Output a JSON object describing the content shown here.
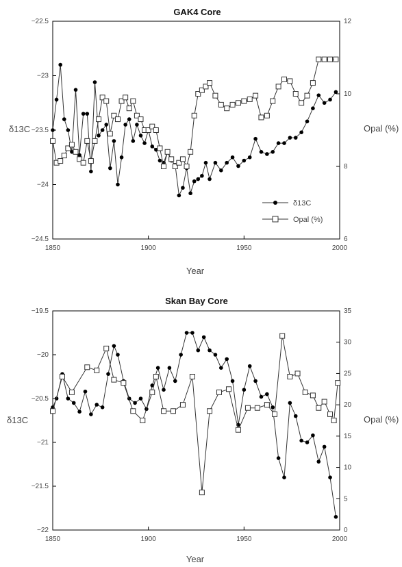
{
  "chart_data": [
    {
      "type": "line",
      "title": "GAK4 Core",
      "xlabel": "Year",
      "ylabel_left": "δ13C",
      "ylabel_right": "Opal (%)",
      "xlim": [
        1850,
        2000
      ],
      "ylim_left": [
        -24.5,
        -22.5
      ],
      "ylim_right": [
        6,
        12
      ],
      "x_ticks": [
        1850,
        1900,
        1950,
        2000
      ],
      "y_ticks_left": [
        -22.5,
        -23,
        -23.5,
        -24,
        -24.5
      ],
      "y_ticks_right": [
        12,
        10,
        8,
        6
      ],
      "grid": false,
      "legend": {
        "position": "bottom-right",
        "entries": [
          "δ13C",
          "Opal (%)"
        ]
      },
      "series": [
        {
          "name": "δ13C",
          "axis": "left",
          "marker": "filled-circle",
          "x": [
            1850,
            1852,
            1854,
            1856,
            1858,
            1860,
            1862,
            1864,
            1866,
            1868,
            1870,
            1872,
            1874,
            1876,
            1878,
            1880,
            1882,
            1884,
            1886,
            1888,
            1890,
            1892,
            1894,
            1896,
            1898,
            1900,
            1902,
            1904,
            1906,
            1908,
            1910,
            1912,
            1914,
            1916,
            1918,
            1920,
            1922,
            1924,
            1926,
            1928,
            1930,
            1932,
            1935,
            1938,
            1941,
            1944,
            1947,
            1950,
            1953,
            1956,
            1959,
            1962,
            1965,
            1968,
            1971,
            1974,
            1977,
            1980,
            1983,
            1986,
            1989,
            1992,
            1995,
            1998
          ],
          "y": [
            -23.5,
            -23.22,
            -22.9,
            -23.4,
            -23.5,
            -23.7,
            -23.13,
            -23.73,
            -23.35,
            -23.35,
            -23.88,
            -23.06,
            -23.55,
            -23.5,
            -23.45,
            -23.85,
            -23.6,
            -24.0,
            -23.75,
            -23.45,
            -23.4,
            -23.6,
            -23.45,
            -23.55,
            -23.62,
            -23.5,
            -23.65,
            -23.68,
            -23.78,
            -23.8,
            -23.7,
            -23.78,
            -23.82,
            -24.1,
            -24.03,
            -23.85,
            -24.08,
            -23.97,
            -23.95,
            -23.92,
            -23.8,
            -23.95,
            -23.8,
            -23.87,
            -23.8,
            -23.75,
            -23.83,
            -23.78,
            -23.75,
            -23.58,
            -23.7,
            -23.72,
            -23.7,
            -23.62,
            -23.62,
            -23.57,
            -23.57,
            -23.52,
            -23.42,
            -23.3,
            -23.18,
            -23.25,
            -23.22,
            -23.15
          ]
        },
        {
          "name": "Opal (%)",
          "axis": "right",
          "marker": "open-square",
          "x": [
            1850,
            1852,
            1854,
            1856,
            1858,
            1860,
            1862,
            1864,
            1866,
            1868,
            1870,
            1872,
            1874,
            1876,
            1878,
            1880,
            1882,
            1884,
            1886,
            1888,
            1890,
            1892,
            1894,
            1896,
            1898,
            1900,
            1902,
            1904,
            1906,
            1908,
            1910,
            1912,
            1914,
            1916,
            1918,
            1920,
            1922,
            1924,
            1926,
            1928,
            1930,
            1932,
            1935,
            1938,
            1941,
            1944,
            1947,
            1950,
            1953,
            1956,
            1959,
            1962,
            1965,
            1968,
            1971,
            1974,
            1977,
            1980,
            1983,
            1986,
            1989,
            1992,
            1995,
            1998
          ],
          "y": [
            8.7,
            8.1,
            8.15,
            8.3,
            8.5,
            8.6,
            8.4,
            8.2,
            8.1,
            8.7,
            8.15,
            8.7,
            9.3,
            9.9,
            9.8,
            8.9,
            9.4,
            9.3,
            9.8,
            9.9,
            9.6,
            9.8,
            9.4,
            9.3,
            9.0,
            9.0,
            9.1,
            9.0,
            8.5,
            8.0,
            8.4,
            8.2,
            8.0,
            8.1,
            8.2,
            8.0,
            8.4,
            9.4,
            10.0,
            10.1,
            10.2,
            10.3,
            9.95,
            9.7,
            9.6,
            9.7,
            9.75,
            9.8,
            9.85,
            9.95,
            9.35,
            9.4,
            9.8,
            10.2,
            10.4,
            10.35,
            10.0,
            9.75,
            9.95,
            10.3,
            10.95,
            10.95,
            10.95,
            10.95
          ]
        }
      ]
    },
    {
      "type": "line",
      "title": "Skan Bay Core",
      "xlabel": "Year",
      "ylabel_left": "δ13C",
      "ylabel_right": "Opal (%)",
      "xlim": [
        1850,
        2000
      ],
      "ylim_left": [
        -22,
        -19.5
      ],
      "ylim_right": [
        0,
        35
      ],
      "x_ticks": [
        1850,
        1900,
        1950,
        2000
      ],
      "y_ticks_left": [
        -19.5,
        -20,
        -20.5,
        -21,
        -21.5,
        -22
      ],
      "y_ticks_right": [
        35,
        30,
        25,
        20,
        15,
        10,
        5,
        0
      ],
      "grid": false,
      "series": [
        {
          "name": "δ13C",
          "axis": "left",
          "marker": "filled-circle",
          "x": [
            1850,
            1852,
            1855,
            1858,
            1861,
            1864,
            1867,
            1870,
            1873,
            1876,
            1879,
            1882,
            1884,
            1887,
            1890,
            1893,
            1896,
            1899,
            1902,
            1905,
            1908,
            1911,
            1914,
            1917,
            1920,
            1923,
            1926,
            1929,
            1932,
            1935,
            1938,
            1941,
            1944,
            1947,
            1950,
            1953,
            1956,
            1959,
            1962,
            1965,
            1968,
            1971,
            1974,
            1977,
            1980,
            1983,
            1986,
            1989,
            1992,
            1995,
            1998
          ],
          "y": [
            -20.6,
            -20.5,
            -20.22,
            -20.5,
            -20.55,
            -20.65,
            -20.42,
            -20.68,
            -20.57,
            -20.6,
            -20.22,
            -19.9,
            -20.0,
            -20.3,
            -20.5,
            -20.55,
            -20.5,
            -20.62,
            -20.35,
            -20.15,
            -20.4,
            -20.15,
            -20.3,
            -20.0,
            -19.75,
            -19.75,
            -19.95,
            -19.8,
            -19.95,
            -20.0,
            -20.15,
            -20.05,
            -20.3,
            -20.8,
            -20.4,
            -20.13,
            -20.3,
            -20.48,
            -20.45,
            -20.6,
            -21.18,
            -21.4,
            -20.55,
            -20.7,
            -20.98,
            -21.0,
            -20.92,
            -21.22,
            -21.05,
            -21.4,
            -21.85
          ]
        },
        {
          "name": "Opal (%)",
          "axis": "right",
          "marker": "open-square",
          "x": [
            1850,
            1855,
            1860,
            1868,
            1873,
            1878,
            1882,
            1887,
            1892,
            1897,
            1902,
            1904,
            1908,
            1913,
            1918,
            1923,
            1928,
            1932,
            1937,
            1942,
            1947,
            1952,
            1957,
            1962,
            1966,
            1970,
            1974,
            1978,
            1982,
            1986,
            1989,
            1992,
            1995,
            1997,
            1999
          ],
          "y": [
            19.0,
            24.5,
            22.0,
            26.0,
            25.5,
            29.0,
            24.0,
            23.5,
            19.0,
            17.5,
            22.0,
            24.5,
            19.0,
            19.0,
            20.0,
            24.5,
            6.0,
            19.0,
            22.0,
            22.5,
            16.0,
            19.5,
            19.5,
            20.0,
            18.5,
            31.0,
            24.5,
            25.0,
            22.0,
            21.5,
            19.5,
            20.5,
            18.5,
            17.5,
            23.5
          ]
        }
      ]
    }
  ]
}
